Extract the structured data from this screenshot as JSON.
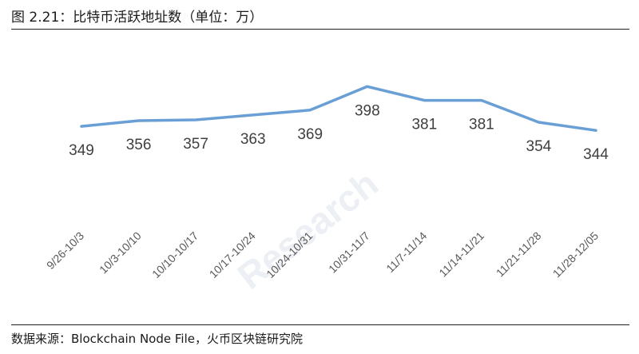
{
  "figure": {
    "title": "图 2.21：比特币活跃地址数（单位：万）",
    "source": "数据来源：Blockchain Node File，火币区块链研究院"
  },
  "colors": {
    "line": "#6a9fd6",
    "label_text": "#404040",
    "axis_text": "#595959",
    "rule": "#222222",
    "watermark": "#e8ebf1"
  },
  "chart_data": {
    "type": "line",
    "categories": [
      "9/26-10/3",
      "10/3-10/10",
      "10/10-10/17",
      "10/17-10/24",
      "10/24-10/31",
      "10/31-11/7",
      "11/7-11/14",
      "11/14-11/21",
      "11/21-11/28",
      "11/28-12/05"
    ],
    "series": [
      {
        "values": [
          349,
          356,
          357,
          363,
          369,
          398,
          381,
          381,
          354,
          344
        ]
      }
    ],
    "ylim": [
      230,
      420
    ],
    "grid": false,
    "legend": "none",
    "data_labels": true
  },
  "watermark": {
    "brand": "Huobi Research",
    "text": "Research"
  }
}
